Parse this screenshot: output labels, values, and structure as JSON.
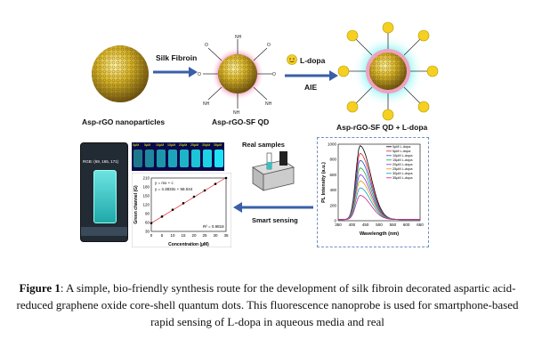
{
  "figure": {
    "nanoparticle_label": "Asp-rGO nanoparticles",
    "qd_label": "Asp-rGO-SF QD",
    "qd_ldopa_label": "Asp-rGO-SF QD + L-dopa",
    "arrow1_label": "Silk Fibroin",
    "arrow2_top_label": "L-dopa",
    "arrow2_bottom_label": "AIE",
    "real_samples_label": "Real samples",
    "smart_sensing_label": "Smart sensing",
    "phone_rgb_text": "RGB: (69, 165, 171)",
    "vial_labels": [
      "0µM",
      "5µM",
      "10µM",
      "15µM",
      "20µM",
      "25µM",
      "30µM",
      "35µM"
    ],
    "colors": {
      "gold": "#d8b52a",
      "teal": "#27c4c4",
      "arrow": "#3a5fa8",
      "dashed": "#6f8fc8"
    }
  },
  "chart_calib": {
    "type": "scatter",
    "xlabel": "Concentration (µM)",
    "ylabel": "Green channel (G)",
    "equation": "y = mx + c",
    "fit": "y = 4.3833x + 58.044",
    "r2": "R² = 0.9818",
    "x": [
      0,
      5,
      10,
      15,
      20,
      25,
      30,
      35
    ],
    "y": [
      58,
      80,
      103,
      125,
      147,
      168,
      190,
      210
    ],
    "xlim": [
      0,
      35
    ],
    "ylim": [
      30,
      210
    ],
    "xticks": [
      "0",
      "5",
      "10",
      "15",
      "20",
      "25",
      "30",
      "35"
    ],
    "yticks": [
      "30",
      "60",
      "90",
      "120",
      "150",
      "180",
      "210"
    ]
  },
  "chart_pl": {
    "type": "line",
    "xlabel": "Wavelength (nm)",
    "ylabel": "PL Intensity (a.u.)",
    "xlim": [
      350,
      650
    ],
    "ylim": [
      0,
      1000
    ],
    "xticks": [
      "350",
      "400",
      "450",
      "500",
      "550",
      "600",
      "650"
    ],
    "yticks": [
      "0",
      "200",
      "400",
      "600",
      "800",
      "1000"
    ],
    "peak_x": 430,
    "series": [
      {
        "name": "0µM L-dopa",
        "peak": 980,
        "color": "#000000"
      },
      {
        "name": "5µM L-dopa",
        "peak": 880,
        "color": "#e0202a"
      },
      {
        "name": "10µM L-dopa",
        "peak": 790,
        "color": "#1f4fd6"
      },
      {
        "name": "15µM L-dopa",
        "peak": 690,
        "color": "#1aa33a"
      },
      {
        "name": "20µM L-dopa",
        "peak": 600,
        "color": "#8a2be2"
      },
      {
        "name": "25µM L-dopa",
        "peak": 520,
        "color": "#d4a000"
      },
      {
        "name": "30µM L-dopa",
        "peak": 430,
        "color": "#00a0c0"
      },
      {
        "name": "35µM L-dopa",
        "peak": 330,
        "color": "#d0208f"
      }
    ]
  },
  "caption": {
    "label": "Figure 1",
    "text": ": A simple, bio-friendly synthesis route for the development of silk fibroin decorated aspartic acid-reduced graphene oxide core-shell quantum dots. This fluorescence nanoprobe is used for smartphone-based rapid sensing of L-dopa in aqueous media and real"
  }
}
